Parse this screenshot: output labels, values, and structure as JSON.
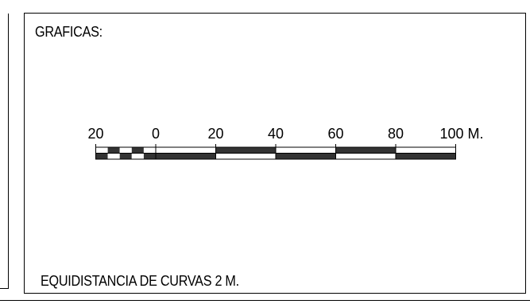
{
  "panel": {
    "title": "GRAFICAS:",
    "footnote": "EQUIDISTANCIA DE CURVAS 2 M."
  },
  "scale_bar": {
    "labels": [
      "20",
      "0",
      "20",
      "40",
      "60",
      "80",
      "100 M."
    ],
    "values": [
      -20,
      0,
      20,
      40,
      60,
      80,
      100
    ],
    "subdivision_count": 5,
    "colors": {
      "line": "#000000",
      "dark": "#333333",
      "light": "#ffffff"
    }
  }
}
